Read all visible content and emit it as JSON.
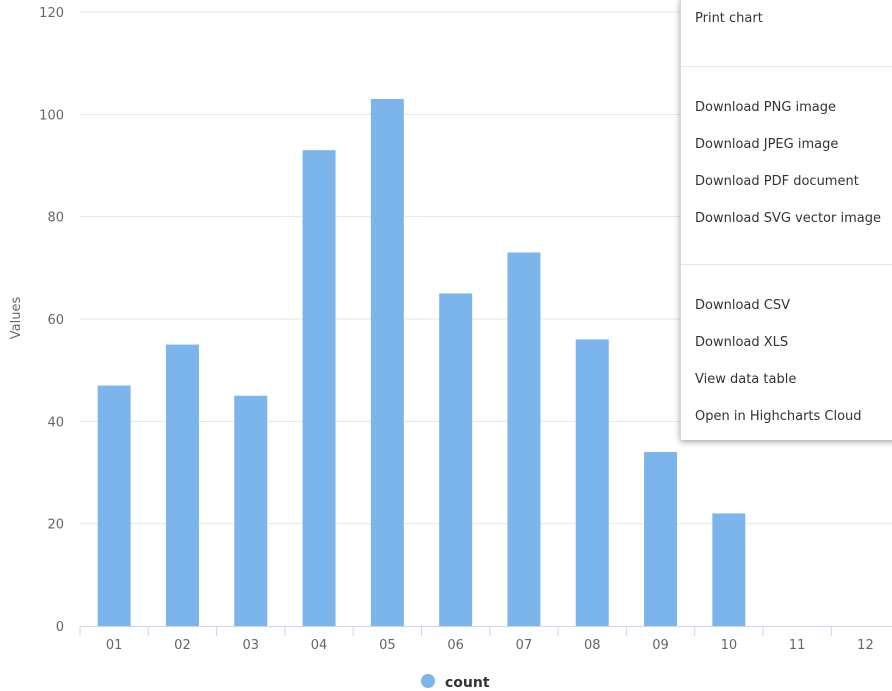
{
  "chart_data": {
    "type": "bar",
    "title": "",
    "xlabel": "",
    "ylabel": "Values",
    "categories": [
      "01",
      "02",
      "03",
      "04",
      "05",
      "06",
      "07",
      "08",
      "09",
      "10",
      "11",
      "12"
    ],
    "series": [
      {
        "name": "count",
        "values": [
          47,
          55,
          45,
          93,
          103,
          65,
          73,
          56,
          34,
          22,
          0,
          0
        ],
        "color": "#7cb5ec"
      }
    ],
    "ylim": [
      0,
      120
    ],
    "yticks": [
      0,
      20,
      40,
      60,
      80,
      100,
      120
    ],
    "grid": true,
    "legend": "bottom-center"
  },
  "export_menu": {
    "items": [
      {
        "label": "Print chart"
      },
      {
        "label": "Download PNG image"
      },
      {
        "label": "Download JPEG image"
      },
      {
        "label": "Download PDF document"
      },
      {
        "label": "Download SVG vector image"
      },
      {
        "label": "Download CSV"
      },
      {
        "label": "Download XLS"
      },
      {
        "label": "View data table"
      },
      {
        "label": "Open in Highcharts Cloud"
      }
    ]
  }
}
